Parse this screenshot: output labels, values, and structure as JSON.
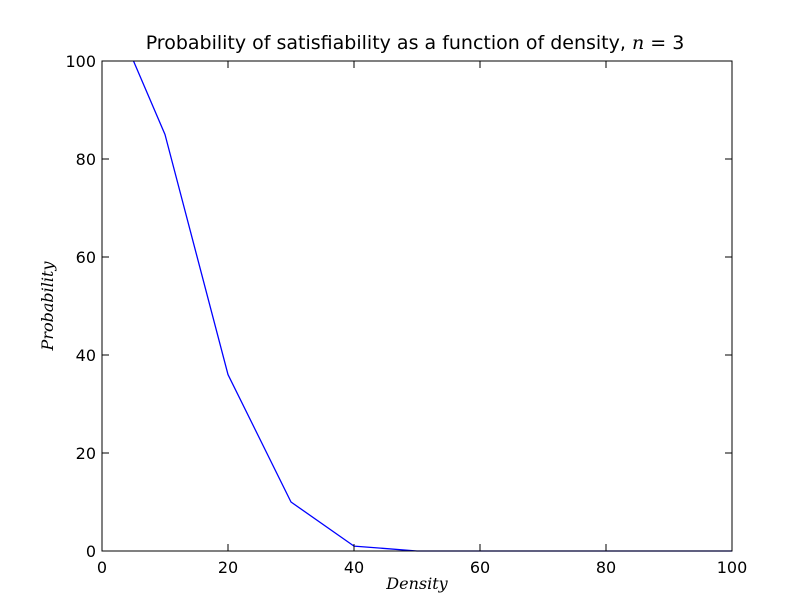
{
  "chart_data": {
    "type": "line",
    "title": {
      "prefix": "Probability of satisfiability as a function of density, ",
      "variable": "n",
      "suffix": " = 3"
    },
    "xlabel": "Density",
    "ylabel": "Probability",
    "xlim": [
      0,
      100
    ],
    "ylim": [
      0,
      100
    ],
    "xticks": [
      0,
      20,
      40,
      60,
      80,
      100
    ],
    "yticks": [
      0,
      20,
      40,
      60,
      80,
      100
    ],
    "grid": false,
    "legend": "none",
    "series": [
      {
        "color": "#0000ff",
        "x": [
          5,
          10,
          20,
          30,
          40,
          50,
          60,
          70,
          80,
          90,
          100
        ],
        "y": [
          100,
          85,
          36,
          10,
          1,
          0,
          0,
          0,
          0,
          0,
          0
        ]
      }
    ]
  }
}
